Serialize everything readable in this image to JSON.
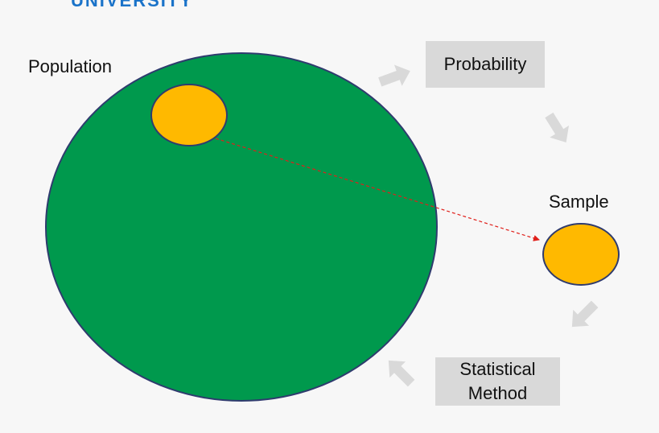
{
  "header": {
    "brand_text": "UNIVERSITY"
  },
  "labels": {
    "population": "Population",
    "sample": "Sample"
  },
  "boxes": {
    "probability": "Probability",
    "statistical_line1": "Statistical",
    "statistical_line2": "Method"
  },
  "colors": {
    "background": "#f7f7f7",
    "population_fill": "#00994d",
    "circle_stroke": "#2f3b6e",
    "sample_fill": "#ffb900",
    "box_fill": "#d9d9d9",
    "arrow_fill": "#d9d9d9",
    "dashed_arrow": "#e0201b",
    "brand": "#1a73c9"
  }
}
